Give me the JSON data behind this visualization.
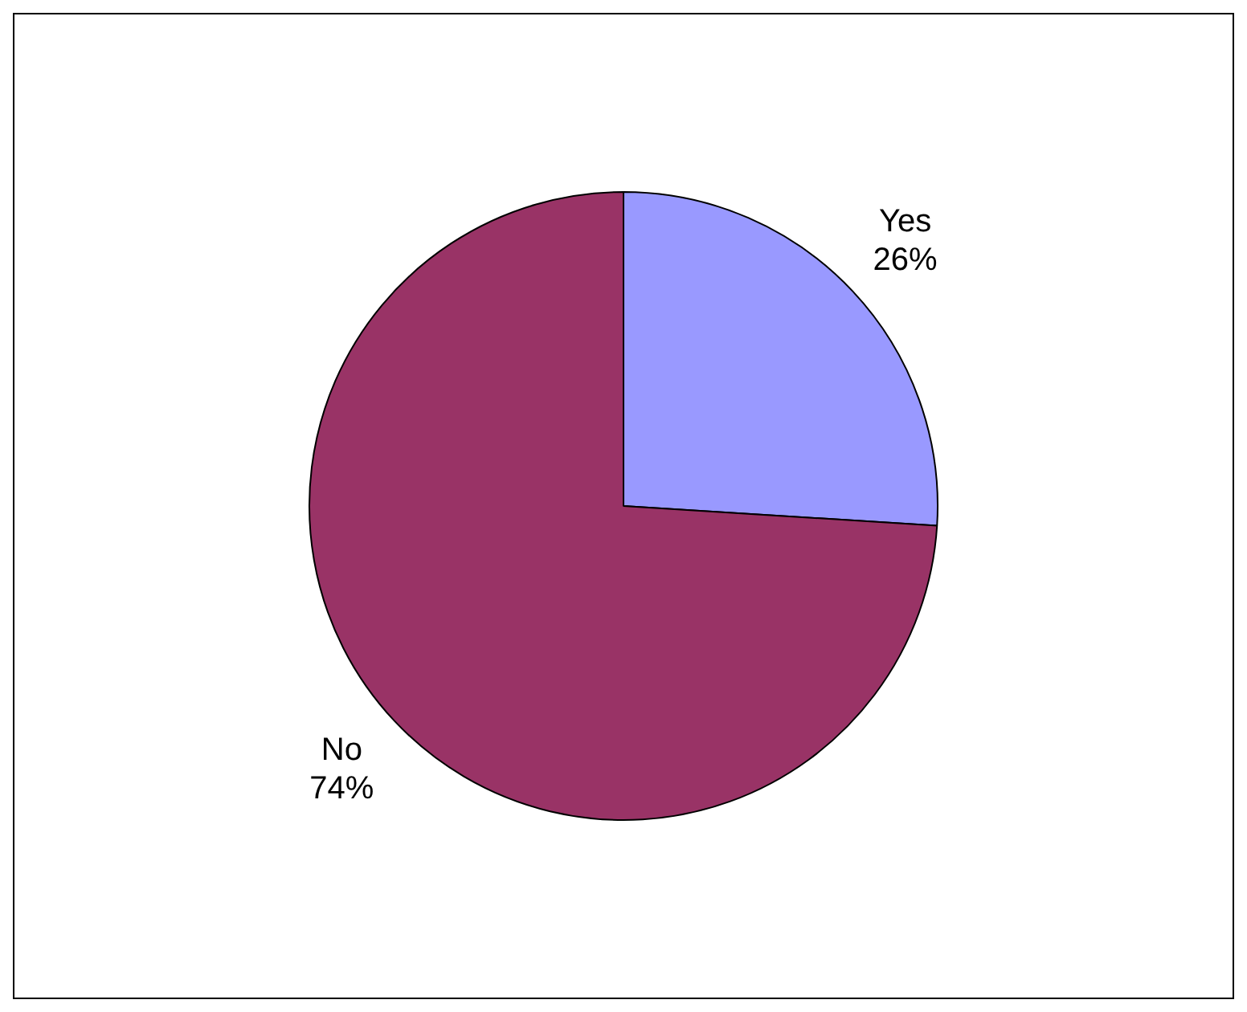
{
  "chart_data": {
    "type": "pie",
    "categories": [
      "Yes",
      "No"
    ],
    "values": [
      26,
      74
    ],
    "colors": [
      "#9999ff",
      "#993366"
    ],
    "value_labels": [
      "26%",
      "74%"
    ],
    "legend": false
  }
}
